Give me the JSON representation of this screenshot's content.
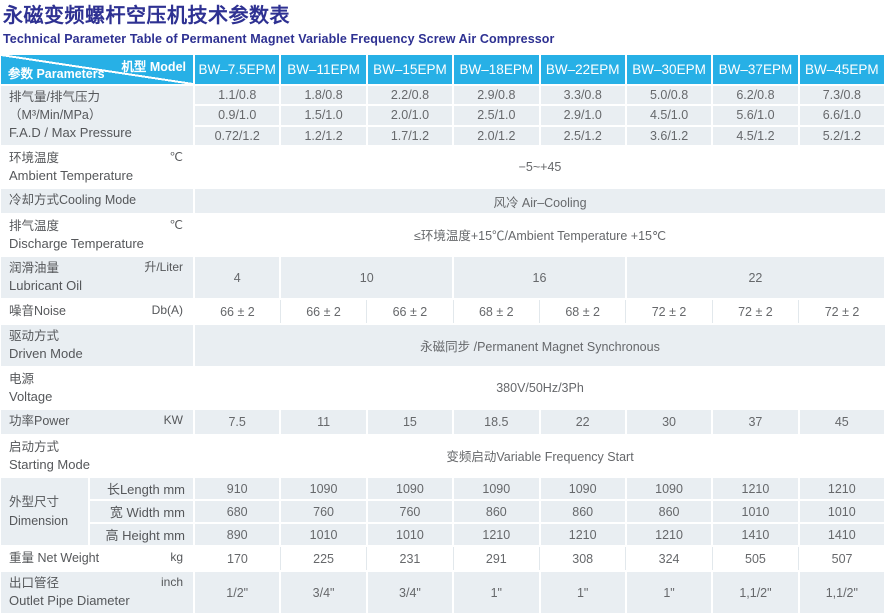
{
  "page": {
    "title": "永磁变频螺杆空压机技术参数表",
    "subtitle": "Technical Parameter Table of Permanent Magnet Variable Frequency Screw Air Compressor"
  },
  "accent_colors": {
    "header_cyan": "#27b0e6",
    "title_blue": "#2e3192",
    "row_gray": "#e9eef2"
  },
  "table": {
    "corner": {
      "model": "机型 Model",
      "params": "参数 Parameters"
    },
    "models": [
      "BW–7.5EPM",
      "BW–11EPM",
      "BW–15EPM",
      "BW–18EPM",
      "BW–22EPM",
      "BW–30EPM",
      "BW–37EPM",
      "BW–45EPM"
    ],
    "fad": {
      "label_zh": "排气量/排气压力（M³/Min/MPa）",
      "label_en": "F.A.D / Max Pressure",
      "rows": [
        [
          "1.1/0.8",
          "1.8/0.8",
          "2.2/0.8",
          "2.9/0.8",
          "3.3/0.8",
          "5.0/0.8",
          "6.2/0.8",
          "7.3/0.8"
        ],
        [
          "0.9/1.0",
          "1.5/1.0",
          "2.0/1.0",
          "2.5/1.0",
          "2.9/1.0",
          "4.5/1.0",
          "5.6/1.0",
          "6.6/1.0"
        ],
        [
          "0.72/1.2",
          "1.2/1.2",
          "1.7/1.2",
          "2.0/1.2",
          "2.5/1.2",
          "3.6/1.2",
          "4.5/1.2",
          "5.2/1.2"
        ]
      ]
    },
    "ambient": {
      "label_zh": "环境温度",
      "unit": "℃",
      "label_en": "Ambient Temperature",
      "value": "−5~+45"
    },
    "cooling": {
      "label": "冷却方式Cooling Mode",
      "value": "风冷 Air–Cooling"
    },
    "discharge": {
      "label_zh": "排气温度",
      "unit": "℃",
      "label_en": "Discharge Temperature",
      "value": "≤环境温度+15℃/Ambient Temperature +15℃"
    },
    "lubricant": {
      "label_zh": "润滑油量",
      "unit": "升/Liter",
      "label_en": "Lubricant Oil",
      "values": [
        "4",
        "10",
        "16",
        "22"
      ]
    },
    "noise": {
      "label": "噪音Noise",
      "unit": "Db(A)",
      "values": [
        "66 ± 2",
        "66 ± 2",
        "66 ± 2",
        "68 ± 2",
        "68 ± 2",
        "72 ± 2",
        "72 ± 2",
        "72 ± 2"
      ]
    },
    "driven": {
      "label_zh": "驱动方式",
      "label_en": "Driven Mode",
      "value": "永磁同步 /Permanent Magnet Synchronous"
    },
    "voltage": {
      "label_zh": "电源",
      "label_en": "Voltage",
      "value": "380V/50Hz/3Ph"
    },
    "power": {
      "label": "功率Power",
      "unit": "KW",
      "values": [
        "7.5",
        "11",
        "15",
        "18.5",
        "22",
        "30",
        "37",
        "45"
      ]
    },
    "starting": {
      "label_zh": "启动方式",
      "label_en": "Starting Mode",
      "value": "变频启动Variable Frequency Start"
    },
    "dimension": {
      "label_zh": "外型尺寸",
      "label_en": "Dimension",
      "subs": [
        "长Length mm",
        "宽 Width mm",
        "高 Height mm"
      ],
      "length": [
        "910",
        "1090",
        "1090",
        "1090",
        "1090",
        "1090",
        "1210",
        "1210"
      ],
      "width": [
        "680",
        "760",
        "760",
        "860",
        "860",
        "860",
        "1010",
        "1010"
      ],
      "height": [
        "890",
        "1010",
        "1010",
        "1210",
        "1210",
        "1210",
        "1410",
        "1410"
      ]
    },
    "weight": {
      "label": "重量 Net Weight",
      "unit": "kg",
      "values": [
        "170",
        "225",
        "231",
        "291",
        "308",
        "324",
        "505",
        "507"
      ]
    },
    "outlet": {
      "label_zh": "出口管径",
      "unit": "inch",
      "label_en": "Outlet Pipe Diameter",
      "values": [
        "1/2\"",
        "3/4\"",
        "3/4\"",
        "1\"",
        "1\"",
        "1\"",
        "1,1/2\"",
        "1,1/2\""
      ]
    }
  }
}
